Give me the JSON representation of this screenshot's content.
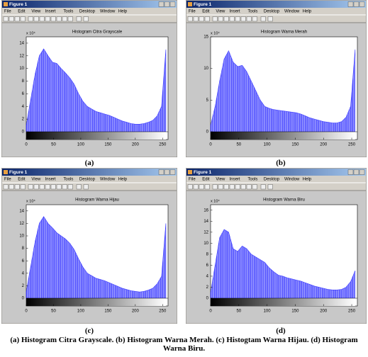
{
  "caption": "(a) Histogram Citra Grayscale. (b) Histogram Warna Merah. (c) Histogtam Warna Hijau. (d) Histogram Warna Biru.",
  "windows": [
    {
      "title": "Figure 1",
      "menu": [
        "File",
        "Edit",
        "View",
        "Insert",
        "Tools",
        "Desktop",
        "Window",
        "Help"
      ],
      "label": "(a)"
    },
    {
      "title": "Figure 1",
      "menu": [
        "File",
        "Edit",
        "View",
        "Insert",
        "Tools",
        "Desktop",
        "Window",
        "Help"
      ],
      "label": "(b)"
    },
    {
      "title": "Figure 1",
      "menu": [
        "File",
        "Edit",
        "View",
        "Insert",
        "Tools",
        "Desktop",
        "Window",
        "Help"
      ],
      "label": "(c)"
    },
    {
      "title": "Figure 1",
      "menu": [
        "File",
        "Edit",
        "View",
        "Insert",
        "Tools",
        "Desktop",
        "Window",
        "Help"
      ],
      "label": "(d)"
    }
  ],
  "chart_data": [
    {
      "type": "area",
      "title": "Histogram Citra Grayscale",
      "exponent": "x 10⁴",
      "color": "#3a3aff",
      "x": [
        0,
        8,
        16,
        24,
        32,
        40,
        48,
        56,
        64,
        72,
        80,
        88,
        96,
        104,
        112,
        120,
        128,
        136,
        144,
        152,
        160,
        168,
        176,
        184,
        192,
        200,
        208,
        216,
        224,
        232,
        240,
        248,
        256
      ],
      "values": [
        1,
        5,
        9,
        12,
        13.1,
        12,
        11,
        10.8,
        10,
        9.3,
        8.5,
        7.5,
        6,
        4.8,
        4,
        3.6,
        3.2,
        3,
        2.8,
        2.6,
        2.3,
        2,
        1.7,
        1.5,
        1.3,
        1.2,
        1.2,
        1.3,
        1.5,
        1.8,
        2.5,
        4,
        13
      ],
      "xlim": [
        0,
        260
      ],
      "xticks": [
        0,
        50,
        100,
        150,
        200,
        250
      ],
      "ylim": [
        0,
        15
      ],
      "yticks": [
        0,
        2,
        4,
        6,
        8,
        10,
        12,
        14
      ]
    },
    {
      "type": "area",
      "title": "Histogram Warna Merah",
      "exponent": "x 10⁴",
      "color": "#3a3aff",
      "x": [
        0,
        8,
        16,
        24,
        32,
        40,
        48,
        56,
        64,
        72,
        80,
        88,
        96,
        104,
        112,
        120,
        128,
        136,
        144,
        152,
        160,
        168,
        176,
        184,
        192,
        200,
        208,
        216,
        224,
        232,
        240,
        248,
        256
      ],
      "values": [
        1,
        4,
        8,
        11.5,
        12.8,
        11,
        10.3,
        10.5,
        9.5,
        8,
        6.5,
        5,
        4,
        3.7,
        3.5,
        3.4,
        3.3,
        3.2,
        3.1,
        3,
        2.8,
        2.5,
        2.2,
        2,
        1.8,
        1.6,
        1.5,
        1.4,
        1.4,
        1.6,
        2.3,
        4,
        13
      ],
      "xlim": [
        0,
        260
      ],
      "xticks": [
        0,
        50,
        100,
        150,
        200,
        250
      ],
      "ylim": [
        0,
        15
      ],
      "yticks": [
        0,
        5,
        10,
        15
      ]
    },
    {
      "type": "area",
      "title": "Histogram Warna Hijau",
      "exponent": "x 10⁴",
      "color": "#3a3aff",
      "x": [
        0,
        8,
        16,
        24,
        32,
        40,
        48,
        56,
        64,
        72,
        80,
        88,
        96,
        104,
        112,
        120,
        128,
        136,
        144,
        152,
        160,
        168,
        176,
        184,
        192,
        200,
        208,
        216,
        224,
        232,
        240,
        248,
        256
      ],
      "values": [
        1,
        5,
        9,
        12,
        13.1,
        12,
        11.3,
        10.5,
        10,
        9.5,
        8.8,
        7.8,
        6.3,
        5,
        4,
        3.6,
        3.2,
        3,
        2.8,
        2.5,
        2.2,
        1.9,
        1.6,
        1.4,
        1.2,
        1.1,
        1,
        1.1,
        1.3,
        1.6,
        2.3,
        3.5,
        12
      ],
      "xlim": [
        0,
        260
      ],
      "xticks": [
        0,
        50,
        100,
        150,
        200,
        250
      ],
      "ylim": [
        0,
        15
      ],
      "yticks": [
        0,
        2,
        4,
        6,
        8,
        10,
        12,
        14
      ]
    },
    {
      "type": "area",
      "title": "Histogram Warna Biru",
      "exponent": "x 10⁴",
      "color": "#3a3aff",
      "x": [
        0,
        8,
        16,
        24,
        32,
        40,
        48,
        56,
        64,
        72,
        80,
        88,
        96,
        104,
        112,
        120,
        128,
        136,
        144,
        152,
        160,
        168,
        176,
        184,
        192,
        200,
        208,
        216,
        224,
        232,
        240,
        248,
        256
      ],
      "values": [
        1,
        6,
        11,
        12.5,
        12,
        9,
        8.5,
        9.5,
        9,
        8,
        7.5,
        7,
        6.5,
        5.5,
        4.8,
        4.2,
        4,
        3.7,
        3.5,
        3.3,
        3.1,
        2.8,
        2.5,
        2.2,
        2,
        1.8,
        1.6,
        1.5,
        1.5,
        1.6,
        2,
        3,
        5
      ],
      "xlim": [
        0,
        260
      ],
      "xticks": [
        0,
        50,
        100,
        150,
        200,
        250
      ],
      "ylim": [
        0,
        17
      ],
      "yticks": [
        0,
        2,
        4,
        6,
        8,
        10,
        12,
        14,
        16
      ]
    }
  ]
}
